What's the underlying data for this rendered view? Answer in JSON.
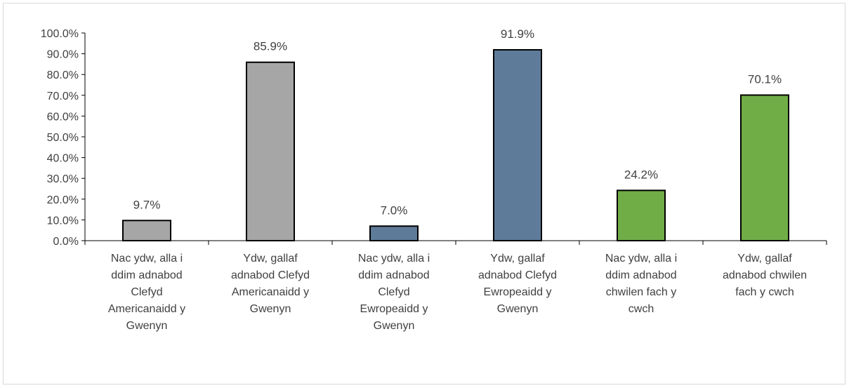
{
  "chart_data": {
    "type": "bar",
    "title": "",
    "xlabel": "",
    "ylabel": "",
    "ylim": [
      0,
      100
    ],
    "y_ticks": [
      "0.0%",
      "10.0%",
      "20.0%",
      "30.0%",
      "40.0%",
      "50.0%",
      "60.0%",
      "70.0%",
      "80.0%",
      "90.0%",
      "100.0%"
    ],
    "grid": false,
    "legend": "none",
    "categories": [
      [
        "Nac ydw, alla i",
        "ddim adnabod",
        "Clefyd",
        "Americanaidd y",
        "Gwenyn"
      ],
      [
        "Ydw, gallaf",
        "adnabod Clefyd",
        "Americanaidd y",
        "Gwenyn"
      ],
      [
        "Nac ydw, alla i",
        "ddim adnabod",
        "Clefyd",
        "Ewropeaidd y",
        "Gwenyn"
      ],
      [
        "Ydw, gallaf",
        "adnabod Clefyd",
        "Ewropeaidd y",
        "Gwenyn"
      ],
      [
        "Nac ydw, alla i",
        "ddim adnabod",
        "chwilen fach y",
        "cwch"
      ],
      [
        "Ydw, gallaf",
        "adnabod chwilen",
        "fach y cwch"
      ]
    ],
    "values": [
      9.7,
      85.9,
      7.0,
      91.9,
      24.2,
      70.1
    ],
    "data_labels": [
      "9.7%",
      "85.9%",
      "7.0%",
      "91.9%",
      "24.2%",
      "70.1%"
    ],
    "colors": [
      "#a6a6a6",
      "#a6a6a6",
      "#5f7b9a",
      "#5f7b9a",
      "#70ad47",
      "#70ad47"
    ],
    "bar_outline": "#000000",
    "axis_color": "#000000",
    "text_color": "#404040"
  }
}
